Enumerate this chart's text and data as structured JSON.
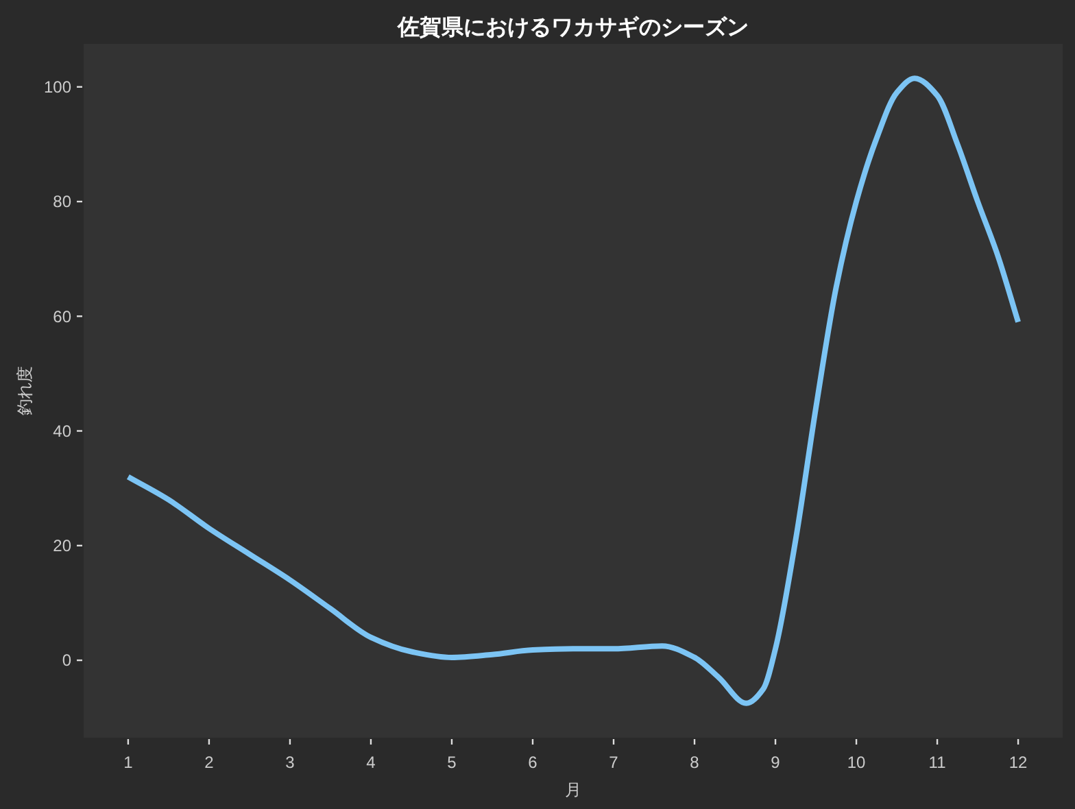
{
  "chart_data": {
    "type": "line",
    "title": "佐賀県におけるワカサギのシーズン",
    "xlabel": "月",
    "ylabel": "釣れ度",
    "x": [
      1,
      1.5,
      2,
      2.5,
      3,
      3.5,
      4,
      4.5,
      5,
      5.5,
      6,
      6.5,
      7,
      7.6,
      8,
      8.3,
      8.64,
      8.85,
      9,
      9.25,
      9.5,
      9.75,
      10,
      10.25,
      10.5,
      10.72,
      11,
      11.25,
      11.5,
      11.75,
      12
    ],
    "series": [
      {
        "color": "#7cc4f4",
        "values": [
          32,
          28,
          23,
          18.5,
          14,
          9,
          4,
          1.5,
          0.5,
          1,
          1.8,
          2,
          2,
          2.5,
          0.5,
          -3,
          -7.5,
          -5,
          2,
          21,
          44,
          65,
          80,
          91,
          99,
          101.5,
          98.5,
          90,
          80,
          70.5,
          59
        ]
      }
    ],
    "xlim": [
      0.45,
      12.55
    ],
    "xticks": [
      1,
      2,
      3,
      4,
      5,
      6,
      7,
      8,
      9,
      10,
      11,
      12
    ],
    "ylim": [
      -13.5,
      107.5
    ],
    "yticks": [
      0,
      20,
      40,
      60,
      80,
      100
    ],
    "line_style": "solid"
  }
}
